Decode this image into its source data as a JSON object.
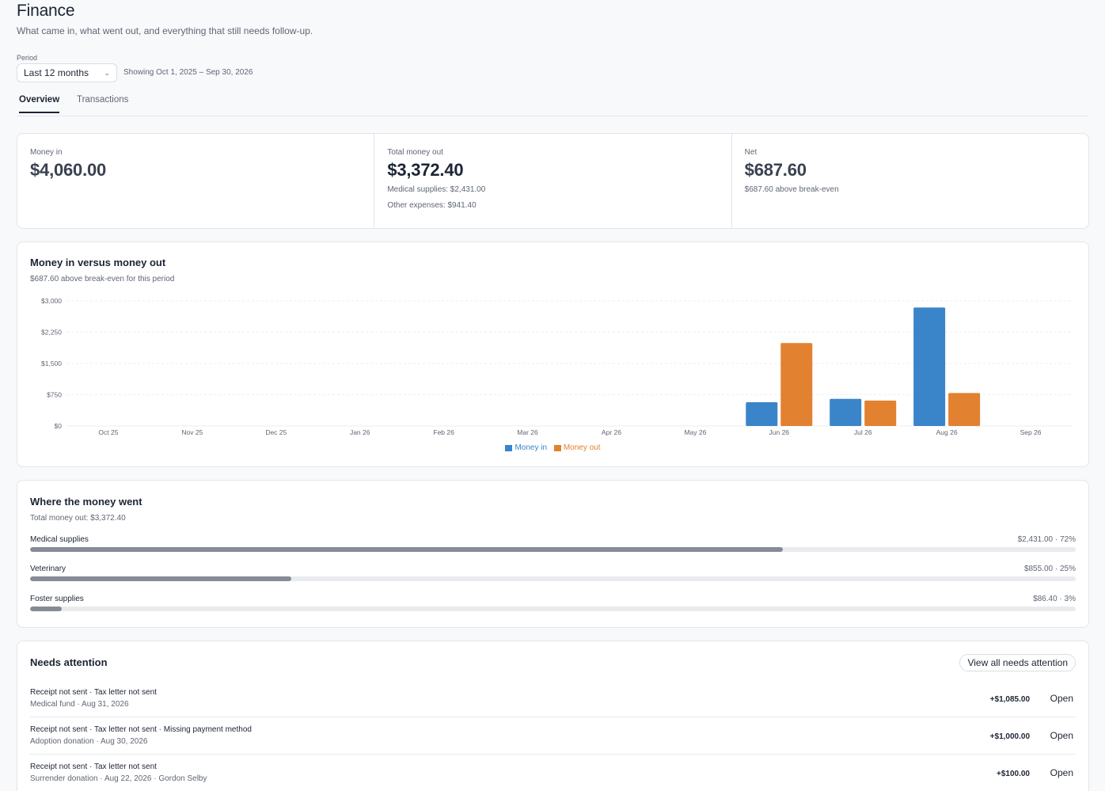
{
  "header": {
    "title": "Finance",
    "subtitle": "What came in, what went out, and everything that still needs follow-up."
  },
  "period": {
    "label": "Period",
    "selected": "Last 12 months",
    "showing": "Showing Oct 1, 2025 – Sep 30, 2026"
  },
  "tabs": [
    {
      "label": "Overview",
      "active": true
    },
    {
      "label": "Transactions",
      "active": false
    }
  ],
  "kpis": {
    "money_in": {
      "label": "Money in",
      "value": "$4,060.00"
    },
    "money_out": {
      "label": "Total money out",
      "value": "$3,372.40",
      "notes": [
        "Medical supplies: $2,431.00",
        "Other expenses: $941.40"
      ]
    },
    "net": {
      "label": "Net",
      "value": "$687.60",
      "note": "$687.60 above break-even"
    }
  },
  "chart_card": {
    "title": "Money in versus money out",
    "subtitle": "$687.60 above break-even for this period"
  },
  "chart_data": {
    "type": "bar",
    "categories": [
      "Oct 25",
      "Nov 25",
      "Dec 25",
      "Jan 26",
      "Feb 26",
      "Mar 26",
      "Apr 26",
      "May 26",
      "Jun 26",
      "Jul 26",
      "Aug 26",
      "Sep 26"
    ],
    "series": [
      {
        "name": "Money in",
        "color": "#3a84c9",
        "values": [
          0,
          0,
          0,
          0,
          0,
          0,
          0,
          0,
          570,
          650,
          2840,
          0
        ]
      },
      {
        "name": "Money out",
        "color": "#e2812f",
        "values": [
          0,
          0,
          0,
          0,
          0,
          0,
          0,
          0,
          1990,
          610,
          790,
          0
        ]
      }
    ],
    "y_ticks": [
      "$0",
      "$750",
      "$1,500",
      "$2,250",
      "$3,000"
    ],
    "ylim": [
      0,
      3000
    ],
    "grid": true,
    "legend_placement": "bottom-center"
  },
  "went": {
    "title": "Where the money went",
    "subtitle": "Total money out: $3,372.40",
    "categories": [
      {
        "name": "Medical supplies",
        "value": "$2,431.00 · 72%",
        "percent": 72
      },
      {
        "name": "Veterinary",
        "value": "$855.00 · 25%",
        "percent": 25
      },
      {
        "name": "Foster supplies",
        "value": "$86.40 · 3%",
        "percent": 3
      }
    ]
  },
  "attention": {
    "title": "Needs attention",
    "view_all": "View all needs attention",
    "items": [
      {
        "flags": "Receipt not sent · Tax letter not sent",
        "meta": "Medical fund · Aug 31, 2026",
        "amount": "+$1,085.00",
        "action": "Open"
      },
      {
        "flags": "Receipt not sent · Tax letter not sent · Missing payment method",
        "meta": "Adoption donation · Aug 30, 2026",
        "amount": "+$1,000.00",
        "action": "Open"
      },
      {
        "flags": "Receipt not sent · Tax letter not sent",
        "meta": "Surrender donation · Aug 22, 2026 · Gordon Selby",
        "amount": "+$100.00",
        "action": "Open"
      }
    ]
  }
}
